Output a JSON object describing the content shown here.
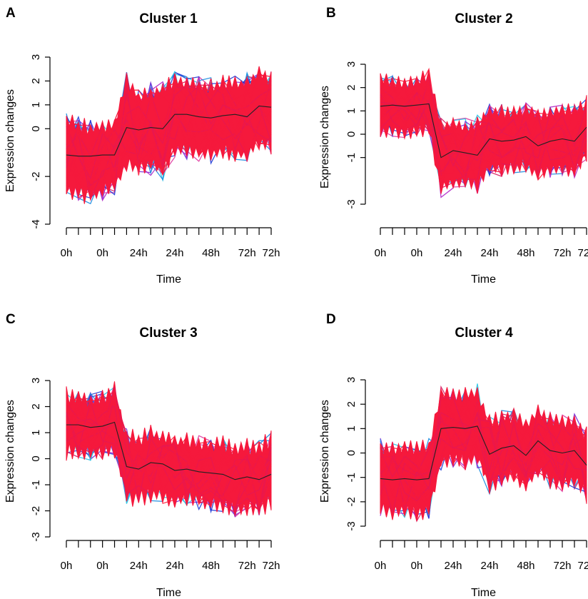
{
  "colors": {
    "band": "#f5193c",
    "profile_palette": [
      "#1f3bd6",
      "#1a8ce0",
      "#29c4e6",
      "#7a2bd6",
      "#b026c8",
      "#e03aa0",
      "#d81b60",
      "#ff1f3d"
    ],
    "centroid": "#222222"
  },
  "chart_data": [
    {
      "panel": "A",
      "type": "line",
      "title": "Cluster 1",
      "xlabel": "Time",
      "ylabel": "Expression changes",
      "x_points": 18,
      "x_tick_labels": [
        "0h",
        "0h",
        "24h",
        "24h",
        "48h",
        "72h",
        "72h"
      ],
      "y_ticks": [
        -4,
        -2,
        0,
        1,
        2,
        3
      ],
      "ylim": [
        -4,
        3
      ],
      "series": [
        {
          "name": "centroid",
          "values": [
            -1.1,
            -1.15,
            -1.15,
            -1.1,
            -1.1,
            0.05,
            -0.05,
            0.05,
            0.0,
            0.6,
            0.6,
            0.5,
            0.45,
            0.55,
            0.6,
            0.5,
            0.95,
            0.9
          ]
        },
        {
          "name": "band-upper",
          "values": [
            0.3,
            0.1,
            0.0,
            0.1,
            0.2,
            2.0,
            1.3,
            1.5,
            1.6,
            2.0,
            1.9,
            1.8,
            1.7,
            1.9,
            1.8,
            1.9,
            2.3,
            2.0
          ]
        },
        {
          "name": "band-lower",
          "values": [
            -2.5,
            -2.7,
            -2.8,
            -2.6,
            -2.4,
            -1.5,
            -1.6,
            -1.5,
            -1.7,
            -0.8,
            -0.9,
            -1.0,
            -1.1,
            -0.9,
            -1.0,
            -1.1,
            -0.5,
            -0.7
          ]
        }
      ]
    },
    {
      "panel": "B",
      "type": "line",
      "title": "Cluster 2",
      "xlabel": "Time",
      "ylabel": "Expression changes",
      "x_points": 18,
      "x_tick_labels": [
        "0h",
        "0h",
        "24h",
        "24h",
        "48h",
        "72h",
        "72h"
      ],
      "y_ticks": [
        -3,
        -1,
        0,
        1,
        2,
        3
      ],
      "ylim": [
        -3,
        3
      ],
      "series": [
        {
          "name": "centroid",
          "values": [
            1.2,
            1.25,
            1.2,
            1.25,
            1.3,
            -1.0,
            -0.7,
            -0.8,
            -0.9,
            -0.2,
            -0.3,
            -0.25,
            -0.1,
            -0.5,
            -0.3,
            -0.2,
            -0.3,
            0.3
          ]
        },
        {
          "name": "band-upper",
          "values": [
            2.3,
            2.2,
            2.1,
            2.2,
            2.5,
            0.3,
            0.4,
            0.3,
            0.4,
            1.0,
            0.9,
            0.9,
            1.0,
            0.8,
            0.9,
            1.0,
            0.9,
            1.3
          ]
        },
        {
          "name": "band-lower",
          "values": [
            0.2,
            0.2,
            0.1,
            0.2,
            0.3,
            -2.3,
            -2.0,
            -2.1,
            -2.2,
            -1.4,
            -1.5,
            -1.4,
            -1.3,
            -1.7,
            -1.5,
            -1.4,
            -1.5,
            -0.8
          ]
        }
      ]
    },
    {
      "panel": "C",
      "type": "line",
      "title": "Cluster 3",
      "xlabel": "Time",
      "ylabel": "Expression changes",
      "x_points": 18,
      "x_tick_labels": [
        "0h",
        "0h",
        "24h",
        "24h",
        "48h",
        "72h",
        "72h"
      ],
      "y_ticks": [
        -3,
        -2,
        -1,
        0,
        1,
        2,
        3
      ],
      "ylim": [
        -3,
        3
      ],
      "series": [
        {
          "name": "centroid",
          "values": [
            1.3,
            1.3,
            1.2,
            1.25,
            1.4,
            -0.3,
            -0.4,
            -0.15,
            -0.2,
            -0.45,
            -0.4,
            -0.5,
            -0.55,
            -0.6,
            -0.8,
            -0.7,
            -0.8,
            -0.6
          ]
        },
        {
          "name": "band-upper",
          "values": [
            2.4,
            2.3,
            2.2,
            2.3,
            2.6,
            0.8,
            0.7,
            0.9,
            0.8,
            0.6,
            0.7,
            0.6,
            0.5,
            0.5,
            0.3,
            0.4,
            0.4,
            0.7
          ]
        },
        {
          "name": "band-lower",
          "values": [
            0.3,
            0.3,
            0.2,
            0.3,
            0.4,
            -1.4,
            -1.5,
            -1.3,
            -1.4,
            -1.6,
            -1.5,
            -1.6,
            -1.7,
            -1.7,
            -1.9,
            -1.8,
            -1.9,
            -1.6
          ]
        }
      ]
    },
    {
      "panel": "D",
      "type": "line",
      "title": "Cluster 4",
      "xlabel": "Time",
      "ylabel": "Expression changes",
      "x_points": 18,
      "x_tick_labels": [
        "0h",
        "0h",
        "24h",
        "24h",
        "48h",
        "72h",
        "72h"
      ],
      "y_ticks": [
        -3,
        -2,
        -1,
        0,
        1,
        2,
        3
      ],
      "ylim": [
        -3,
        3
      ],
      "series": [
        {
          "name": "centroid",
          "values": [
            -1.05,
            -1.1,
            -1.05,
            -1.1,
            -1.05,
            1.0,
            1.05,
            1.0,
            1.1,
            -0.05,
            0.2,
            0.3,
            -0.1,
            0.5,
            0.1,
            0.0,
            0.1,
            -0.5
          ]
        },
        {
          "name": "band-upper",
          "values": [
            0.2,
            0.1,
            0.2,
            0.1,
            0.2,
            2.4,
            2.3,
            2.3,
            2.5,
            1.2,
            1.4,
            1.5,
            1.1,
            1.7,
            1.3,
            1.2,
            1.3,
            0.7
          ]
        },
        {
          "name": "band-lower",
          "values": [
            -2.3,
            -2.4,
            -2.3,
            -2.4,
            -2.3,
            -0.3,
            -0.2,
            -0.3,
            -0.2,
            -1.3,
            -1.0,
            -0.9,
            -1.3,
            -0.7,
            -1.1,
            -1.2,
            -1.1,
            -1.7
          ]
        }
      ]
    }
  ]
}
